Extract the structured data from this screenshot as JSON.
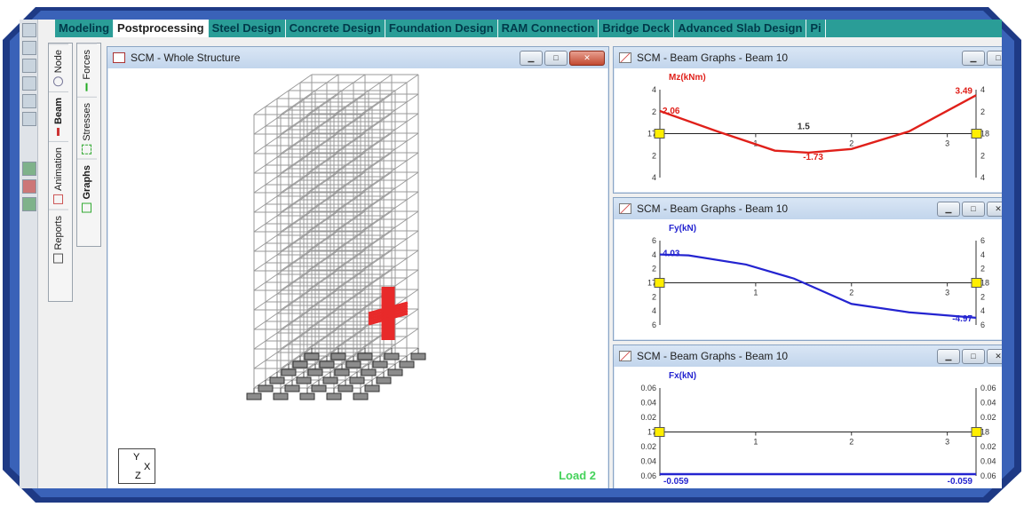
{
  "menu_tabs": [
    "Modeling",
    "Postprocessing",
    "Steel Design",
    "Concrete Design",
    "Foundation Design",
    "RAM Connection",
    "Bridge Deck",
    "Advanced Slab Design",
    "Pi"
  ],
  "active_tab": "Postprocessing",
  "side_tabs_a": [
    "Node",
    "Beam",
    "Animation",
    "Reports"
  ],
  "side_tabs_b": [
    "Forces",
    "Stresses",
    "Graphs"
  ],
  "structure_window": {
    "title": "SCM - Whole Structure",
    "load_label": "Load 2",
    "axis_labels": {
      "y": "Y",
      "x": "X",
      "z": "Z"
    }
  },
  "graphs": [
    {
      "title": "SCM - Beam Graphs - Beam 10",
      "quantity": "Mz(kNm)",
      "color": "#e0201a",
      "left_ticks": [
        "4",
        "2",
        "17",
        "2",
        "4"
      ],
      "right_ticks": [
        "4",
        "2",
        "18",
        "2",
        "4"
      ],
      "x_ticks": [
        "1",
        "2",
        "3"
      ],
      "x_tick_right_edge": "3",
      "annotations": {
        "start": "2.06",
        "end": "3.49",
        "mid_x": "1.5",
        "min": "-1.73"
      }
    },
    {
      "title": "SCM - Beam Graphs - Beam 10",
      "quantity": "Fy(kN)",
      "color": "#2424d0",
      "left_ticks": [
        "6",
        "4",
        "2",
        "17",
        "2",
        "4",
        "6"
      ],
      "right_ticks": [
        "6",
        "4",
        "2",
        "18",
        "2",
        "4",
        "6"
      ],
      "x_ticks": [
        "1",
        "2",
        "3"
      ],
      "annotations": {
        "start": "4.03",
        "end": "-4.97"
      }
    },
    {
      "title": "SCM - Beam Graphs - Beam 10",
      "quantity": "Fx(kN)",
      "color": "#2424d0",
      "left_ticks": [
        "0.06",
        "0.04",
        "0.02",
        "17",
        "0.02",
        "0.04",
        "0.06"
      ],
      "right_ticks": [
        "0.06",
        "0.04",
        "0.02",
        "18",
        "0.02",
        "0.04",
        "0.06"
      ],
      "x_ticks": [
        "1",
        "2",
        "3"
      ],
      "annotations": {
        "start": "-0.059",
        "end": "-0.059"
      }
    }
  ],
  "colors": {
    "tab_bar": "#2a9d97",
    "frame": "#1f3f8a",
    "load_label": "#44d25a",
    "highlight_beam": "#e82a2a"
  }
}
